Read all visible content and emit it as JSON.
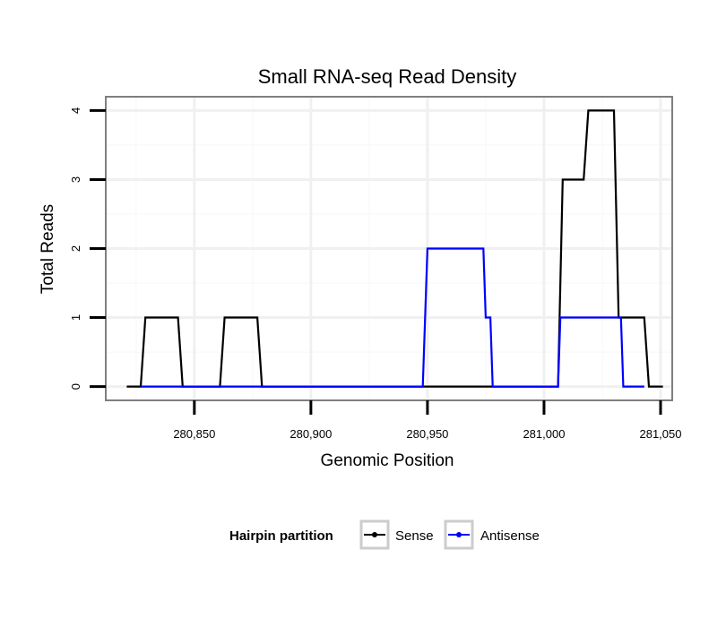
{
  "chart_data": {
    "type": "line",
    "title": "Small RNA-seq Read Density",
    "xlabel": "Genomic Position",
    "ylabel": "Total Reads",
    "xlim": [
      280812,
      281055
    ],
    "ylim": [
      -0.2,
      4.2
    ],
    "x_ticks": [
      280850,
      280900,
      280950,
      281000,
      281050
    ],
    "x_tick_labels": [
      "280,850",
      "280,900",
      "280,950",
      "281,000",
      "281,050"
    ],
    "y_ticks": [
      0,
      1,
      2,
      3,
      4
    ],
    "y_tick_labels": [
      "0",
      "1",
      "2",
      "3",
      "4"
    ],
    "grid": true,
    "legend": {
      "title": "Hairpin partition",
      "position": "bottom"
    },
    "series": [
      {
        "name": "Sense",
        "color": "#000000",
        "points": [
          [
            280821,
            0
          ],
          [
            280827,
            0
          ],
          [
            280829,
            1
          ],
          [
            280843,
            1
          ],
          [
            280845,
            0
          ],
          [
            280861,
            0
          ],
          [
            280863,
            1
          ],
          [
            280877,
            1
          ],
          [
            280879,
            0
          ],
          [
            281006,
            0
          ],
          [
            281008,
            3
          ],
          [
            281017,
            3
          ],
          [
            281019,
            4
          ],
          [
            281030,
            4
          ],
          [
            281032,
            1
          ],
          [
            281043,
            1
          ],
          [
            281045,
            0
          ],
          [
            281051,
            0
          ]
        ]
      },
      {
        "name": "Antisense",
        "color": "#0000ff",
        "points": [
          [
            280827,
            0
          ],
          [
            280877,
            0
          ],
          [
            280948,
            0
          ],
          [
            280950,
            2
          ],
          [
            280974,
            2
          ],
          [
            280975,
            1
          ],
          [
            280977,
            1
          ],
          [
            280978,
            0
          ],
          [
            281006,
            0
          ],
          [
            281007,
            1
          ],
          [
            281033,
            1
          ],
          [
            281034,
            0
          ],
          [
            281043,
            0
          ]
        ]
      }
    ]
  }
}
